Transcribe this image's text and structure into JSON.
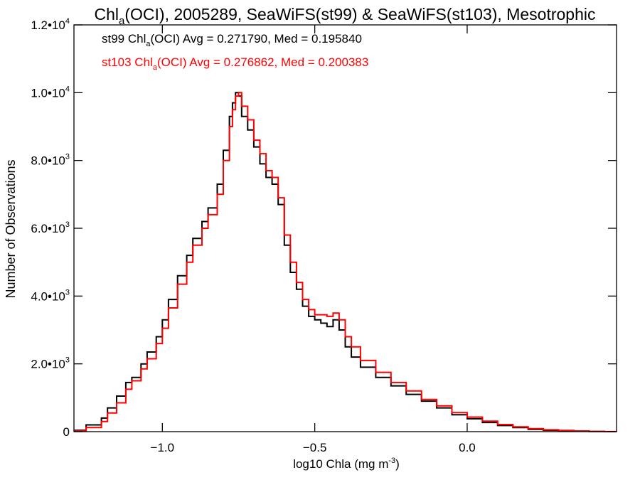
{
  "chart_data": {
    "type": "line",
    "title": {
      "pre": "Chl",
      "sub": "a",
      "post": "(OCI), 2005289, SeaWiFS(st99) & SeaWiFS(st103), Mesotrophic"
    },
    "xlabel": {
      "pre": "log10 Chla (mg m",
      "sup": "-3",
      "post": ")"
    },
    "ylabel": "Number of Observations",
    "xlim": [
      -1.29,
      0.49
    ],
    "ylim": [
      0,
      12000
    ],
    "x_ticks": [
      {
        "value": -1.0,
        "label": "−1.0"
      },
      {
        "value": -0.5,
        "label": "−0.5"
      },
      {
        "value": 0.0,
        "label": "0.0"
      }
    ],
    "y_ticks": [
      {
        "value": 0,
        "mant": "0",
        "exp": ""
      },
      {
        "value": 2000,
        "mant": "2.0•10",
        "exp": "3"
      },
      {
        "value": 4000,
        "mant": "4.0•10",
        "exp": "3"
      },
      {
        "value": 6000,
        "mant": "6.0•10",
        "exp": "3"
      },
      {
        "value": 8000,
        "mant": "8.0•10",
        "exp": "3"
      },
      {
        "value": 10000,
        "mant": "1.0•10",
        "exp": "4"
      },
      {
        "value": 12000,
        "mant": "1.2•10",
        "exp": "4"
      }
    ],
    "annotations": [
      {
        "series": 0,
        "pre": "st99 Chl",
        "sub": "a",
        "post": "(OCI) Avg = 0.271790, Med = 0.195840"
      },
      {
        "series": 1,
        "pre": "st103 Chl",
        "sub": "a",
        "post": "(OCI) Avg = 0.276862, Med = 0.200383"
      }
    ],
    "series": [
      {
        "color": "#000000",
        "x": [
          -1.29,
          -1.25,
          -1.2,
          -1.18,
          -1.15,
          -1.12,
          -1.1,
          -1.07,
          -1.05,
          -1.02,
          -1.0,
          -0.98,
          -0.95,
          -0.92,
          -0.9,
          -0.87,
          -0.85,
          -0.82,
          -0.8,
          -0.78,
          -0.77,
          -0.76,
          -0.75,
          -0.74,
          -0.72,
          -0.7,
          -0.68,
          -0.66,
          -0.64,
          -0.62,
          -0.6,
          -0.58,
          -0.56,
          -0.54,
          -0.52,
          -0.5,
          -0.48,
          -0.46,
          -0.44,
          -0.42,
          -0.4,
          -0.38,
          -0.35,
          -0.3,
          -0.25,
          -0.2,
          -0.15,
          -0.1,
          -0.05,
          0.0,
          0.05,
          0.1,
          0.15,
          0.2,
          0.25,
          0.3,
          0.35,
          0.4,
          0.45,
          0.49
        ],
        "y": [
          40,
          200,
          400,
          700,
          1050,
          1450,
          1600,
          2000,
          2350,
          2800,
          3300,
          3900,
          4600,
          5200,
          5700,
          6200,
          6600,
          7300,
          8300,
          9300,
          9700,
          10000,
          9900,
          9300,
          8900,
          8400,
          7900,
          7500,
          7300,
          6700,
          5500,
          4700,
          4200,
          3700,
          3400,
          3300,
          3200,
          3100,
          3300,
          3000,
          2500,
          2200,
          1900,
          1600,
          1350,
          1100,
          900,
          700,
          500,
          380,
          270,
          180,
          120,
          70,
          40,
          25,
          15,
          5,
          0,
          0
        ]
      },
      {
        "color": "#ff0000",
        "x": [
          -1.29,
          -1.25,
          -1.2,
          -1.18,
          -1.15,
          -1.12,
          -1.1,
          -1.07,
          -1.05,
          -1.02,
          -1.0,
          -0.98,
          -0.95,
          -0.92,
          -0.9,
          -0.87,
          -0.85,
          -0.82,
          -0.8,
          -0.78,
          -0.77,
          -0.76,
          -0.75,
          -0.74,
          -0.72,
          -0.7,
          -0.68,
          -0.66,
          -0.64,
          -0.62,
          -0.6,
          -0.58,
          -0.56,
          -0.54,
          -0.52,
          -0.5,
          -0.48,
          -0.46,
          -0.44,
          -0.42,
          -0.4,
          -0.38,
          -0.35,
          -0.3,
          -0.25,
          -0.2,
          -0.15,
          -0.1,
          -0.05,
          0.0,
          0.05,
          0.1,
          0.15,
          0.2,
          0.25,
          0.3,
          0.35,
          0.4,
          0.45,
          0.49
        ],
        "y": [
          20,
          120,
          300,
          550,
          850,
          1250,
          1500,
          1850,
          2150,
          2600,
          3050,
          3650,
          4350,
          5000,
          5500,
          6000,
          6400,
          7000,
          8000,
          9000,
          9500,
          9900,
          10000,
          9600,
          9200,
          8600,
          8200,
          7700,
          7500,
          6900,
          5800,
          5000,
          4400,
          3900,
          3600,
          3450,
          3450,
          3400,
          3500,
          3300,
          2800,
          2500,
          2100,
          1750,
          1450,
          1200,
          950,
          760,
          560,
          430,
          310,
          210,
          140,
          90,
          55,
          35,
          20,
          8,
          2,
          0
        ]
      }
    ]
  }
}
